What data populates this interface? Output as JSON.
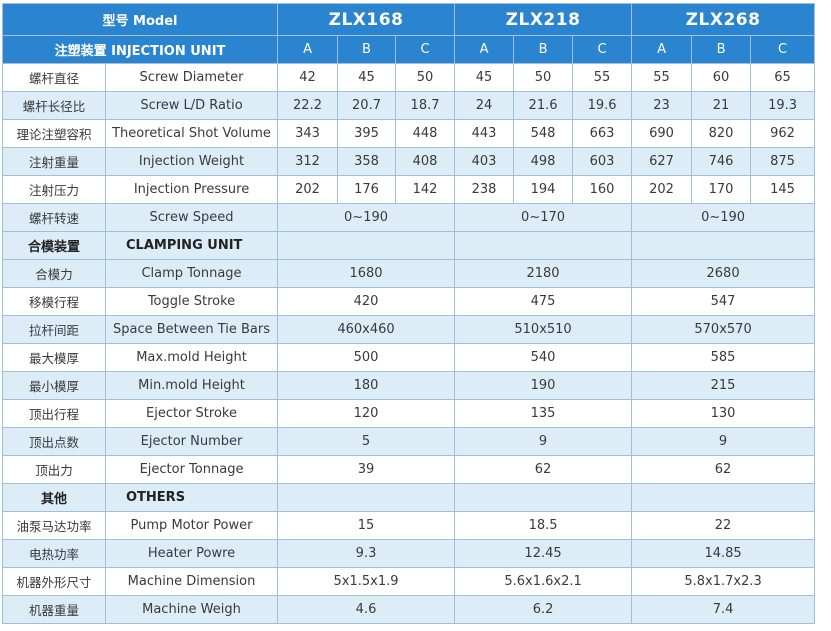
{
  "header": {
    "model_label": "型号 Model",
    "models": [
      "ZLX168",
      "ZLX218",
      "ZLX268"
    ],
    "section_label": "注塑装置 INJECTION UNIT",
    "variants": [
      "A",
      "B",
      "C",
      "A",
      "B",
      "C",
      "A",
      "B",
      "C"
    ]
  },
  "injection_rows": [
    {
      "cn": "螺杆直径",
      "en": "Screw Diameter",
      "values": [
        "42",
        "45",
        "50",
        "45",
        "50",
        "55",
        "55",
        "60",
        "65"
      ]
    },
    {
      "cn": "螺杆长径比",
      "en": "Screw L/D Ratio",
      "values": [
        "22.2",
        "20.7",
        "18.7",
        "24",
        "21.6",
        "19.6",
        "23",
        "21",
        "19.3"
      ]
    },
    {
      "cn": "理论注塑容积",
      "en": "Theoretical Shot Volume",
      "values": [
        "343",
        "395",
        "448",
        "443",
        "548",
        "663",
        "690",
        "820",
        "962"
      ]
    },
    {
      "cn": "注射重量",
      "en": "Injection Weight",
      "values": [
        "312",
        "358",
        "408",
        "403",
        "498",
        "603",
        "627",
        "746",
        "875"
      ]
    },
    {
      "cn": "注射压力",
      "en": "Injection Pressure",
      "values": [
        "202",
        "176",
        "142",
        "238",
        "194",
        "160",
        "202",
        "170",
        "145"
      ]
    }
  ],
  "screw_speed": {
    "cn": "螺杆转速",
    "en": "Screw Speed",
    "values": [
      "0~190",
      "0~170",
      "0~190"
    ]
  },
  "clamping_section": {
    "cn": "合模装置",
    "en": "CLAMPING UNIT"
  },
  "clamping_rows": [
    {
      "cn": "合模力",
      "en": "Clamp Tonnage",
      "values": [
        "1680",
        "2180",
        "2680"
      ]
    },
    {
      "cn": "移模行程",
      "en": "Toggle Stroke",
      "values": [
        "420",
        "475",
        "547"
      ]
    },
    {
      "cn": "拉杆间距",
      "en": "Space Between Tie Bars",
      "values": [
        "460x460",
        "510x510",
        "570x570"
      ]
    },
    {
      "cn": "最大模厚",
      "en": "Max.mold Height",
      "values": [
        "500",
        "540",
        "585"
      ]
    },
    {
      "cn": "最小模厚",
      "en": "Min.mold Height",
      "values": [
        "180",
        "190",
        "215"
      ]
    },
    {
      "cn": "顶出行程",
      "en": "Ejector Stroke",
      "values": [
        "120",
        "135",
        "130"
      ]
    },
    {
      "cn": "顶出点数",
      "en": "Ejector Number",
      "values": [
        "5",
        "9",
        "9"
      ]
    },
    {
      "cn": "顶出力",
      "en": "Ejector Tonnage",
      "values": [
        "39",
        "62",
        "62"
      ]
    }
  ],
  "others_section": {
    "cn": "其他",
    "en": "OTHERS"
  },
  "others_rows": [
    {
      "cn": "油泵马达功率",
      "en": "Pump Motor Power",
      "values": [
        "15",
        "18.5",
        "22"
      ]
    },
    {
      "cn": "电热功率",
      "en": "Heater Powre",
      "values": [
        "9.3",
        "12.45",
        "14.85"
      ]
    },
    {
      "cn": "机器外形尺寸",
      "en": "Machine Dimension",
      "values": [
        "5x1.5x1.9",
        "5.6x1.6x2.1",
        "5.8x1.7x2.3"
      ]
    },
    {
      "cn": "机器重量",
      "en": "Machine Weigh",
      "values": [
        "4.6",
        "6.2",
        "7.4"
      ]
    }
  ],
  "colors": {
    "header_blue": "#2a84cf",
    "row_alt": "#dcedf8",
    "border": "#9fbfdb",
    "text": "#3a3a3a"
  }
}
